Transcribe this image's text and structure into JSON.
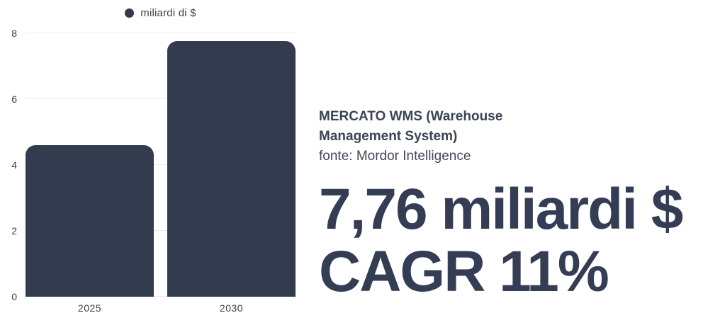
{
  "colors": {
    "bar": "#333b4e",
    "legend_dot": "#333a4a",
    "grid": "#e9eaec",
    "axis_text": "#3b4049",
    "heading_text": "#3c4453",
    "highlight_text": "#353d54"
  },
  "chart_data": {
    "type": "bar",
    "categories": [
      "2025",
      "2030"
    ],
    "values": [
      4.6,
      7.76
    ],
    "series_name": "miliardi di $",
    "title": "",
    "xlabel": "",
    "ylabel": "",
    "ylim": [
      0,
      8
    ],
    "yticks": [
      0,
      2,
      4,
      6,
      8
    ],
    "grid": "horizontal",
    "legend_position": "top-center"
  },
  "legend": {
    "label": "miliardi di $"
  },
  "info": {
    "title": "MERCATO WMS (Warehouse Management System)",
    "source": "fonte: Mordor Intelligence",
    "highlight_line1": "7,76 miliardi $",
    "highlight_line2": "CAGR 11%"
  }
}
